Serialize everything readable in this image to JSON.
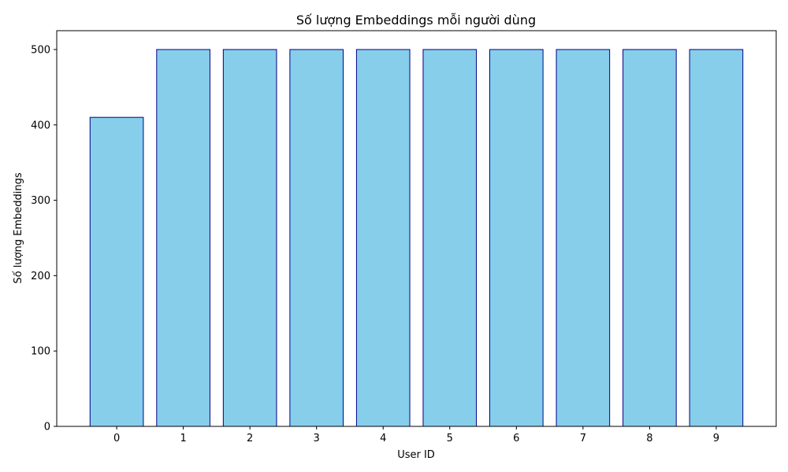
{
  "chart_data": {
    "type": "bar",
    "title": "Số lượng Embeddings mỗi người dùng",
    "xlabel": "User ID",
    "ylabel": "Số lượng Embeddings",
    "categories": [
      "0",
      "1",
      "2",
      "3",
      "4",
      "5",
      "6",
      "7",
      "8",
      "9"
    ],
    "values": [
      410,
      500,
      500,
      500,
      500,
      500,
      500,
      500,
      500,
      500
    ],
    "ylim": [
      0,
      525
    ],
    "yticks": [
      0,
      100,
      200,
      300,
      400,
      500
    ],
    "grid": false,
    "legend": "none",
    "bar_color": "#87ceeb",
    "bar_edge_color": "#00008b"
  }
}
